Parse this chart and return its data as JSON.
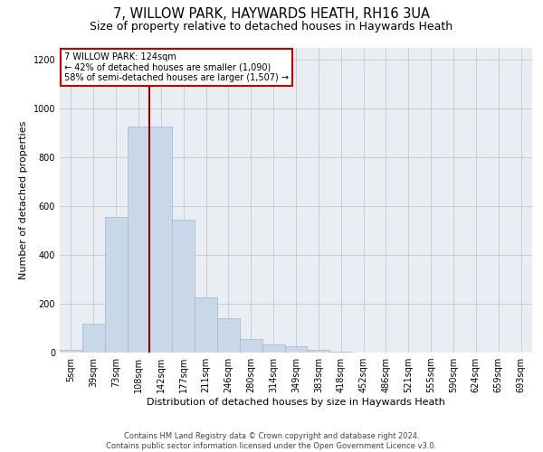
{
  "title_line1": "7, WILLOW PARK, HAYWARDS HEATH, RH16 3UA",
  "title_line2": "Size of property relative to detached houses in Haywards Heath",
  "xlabel": "Distribution of detached houses by size in Haywards Heath",
  "ylabel": "Number of detached properties",
  "bar_labels": [
    "5sqm",
    "39sqm",
    "73sqm",
    "108sqm",
    "142sqm",
    "177sqm",
    "211sqm",
    "246sqm",
    "280sqm",
    "314sqm",
    "349sqm",
    "383sqm",
    "418sqm",
    "452sqm",
    "486sqm",
    "521sqm",
    "555sqm",
    "590sqm",
    "624sqm",
    "659sqm",
    "693sqm"
  ],
  "bar_values": [
    10,
    120,
    555,
    925,
    925,
    545,
    225,
    140,
    57,
    33,
    25,
    10,
    5,
    0,
    0,
    0,
    0,
    0,
    0,
    0,
    0
  ],
  "bar_color": "#c8d8e8",
  "bar_edge_color": "#a0b8cc",
  "vline_x": 3.5,
  "vline_color": "#8b0000",
  "annotation_line1": "7 WILLOW PARK: 124sqm",
  "annotation_line2": "← 42% of detached houses are smaller (1,090)",
  "annotation_line3": "58% of semi-detached houses are larger (1,507) →",
  "annotation_box_edge": "#cc0000",
  "ylim": [
    0,
    1250
  ],
  "yticks": [
    0,
    200,
    400,
    600,
    800,
    1000,
    1200
  ],
  "grid_color": "#cccccc",
  "bg_color": "#e8eef4",
  "footer_line1": "Contains HM Land Registry data © Crown copyright and database right 2024.",
  "footer_line2": "Contains public sector information licensed under the Open Government Licence v3.0.",
  "title1_fontsize": 10.5,
  "title2_fontsize": 9,
  "xlabel_fontsize": 8,
  "ylabel_fontsize": 8,
  "tick_fontsize": 7,
  "annot_fontsize": 7,
  "footer_fontsize": 6
}
